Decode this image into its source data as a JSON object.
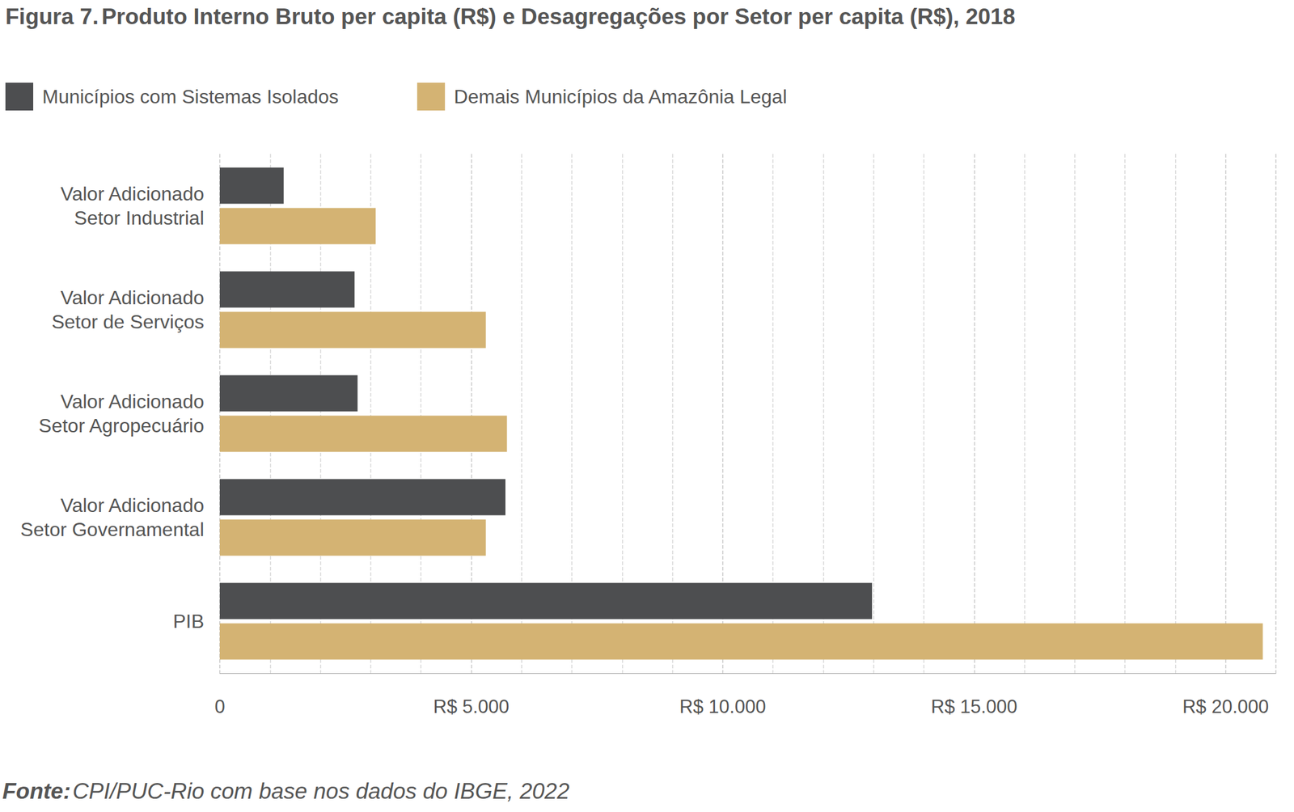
{
  "chart_data": {
    "type": "bar",
    "orientation": "horizontal",
    "title": "Figura 7. Produto Interno Bruto per capita (R$) e Desagregações por Setor per capita (R$), 2018",
    "source": "Fonte: CPI/PUC-Rio com base nos dados do IBGE, 2022",
    "categories": [
      "Valor Adicionado\nSetor Industrial",
      "Valor Adicionado\nSetor de Serviços",
      "Valor Adicionado\nSetor Agropecuário",
      "Valor Adicionado\nSetor Governamental",
      "PIB"
    ],
    "series": [
      {
        "name": "Municípios com Sistemas Isolados",
        "color": "#4d4e50",
        "values": [
          1270,
          2680,
          2740,
          5680,
          12970
        ]
      },
      {
        "name": "Demais Municípios da Amazônia Legal",
        "color": "#d4b373",
        "values": [
          3100,
          5290,
          5710,
          5290,
          20740
        ]
      }
    ],
    "xlim": [
      0,
      21000
    ],
    "xticks": [
      0,
      {
        "value": 5000,
        "label": "R$ 5.000"
      },
      {
        "value": 10000,
        "label": "R$ 10.000"
      },
      {
        "value": 15000,
        "label": "R$ 15.000"
      },
      {
        "value": 20000,
        "label": "R$ 20.000"
      }
    ],
    "grid": true,
    "legend": "top-left"
  }
}
